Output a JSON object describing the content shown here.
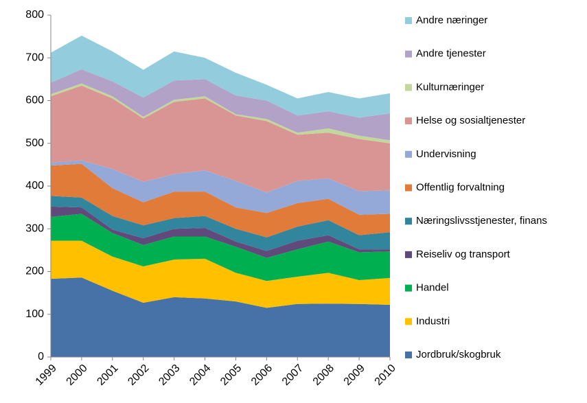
{
  "chart_data": {
    "type": "stacked_area",
    "categories": [
      "1999",
      "2000",
      "2001",
      "2002",
      "2003",
      "2004",
      "2005",
      "2006",
      "2007",
      "2008",
      "2009",
      "2010"
    ],
    "ylim": [
      0,
      800
    ],
    "yticks": [
      0,
      100,
      200,
      300,
      400,
      500,
      600,
      700,
      800
    ],
    "legend": "right",
    "series": [
      {
        "name": "Jordbruk/skogbruk",
        "color": "#4672a8",
        "values": [
          183,
          186,
          155,
          127,
          140,
          137,
          130,
          115,
          124,
          125,
          124,
          122
        ]
      },
      {
        "name": "Industri",
        "color": "#ffc000",
        "values": [
          89,
          86,
          80,
          85,
          88,
          93,
          67,
          63,
          64,
          72,
          56,
          63
        ]
      },
      {
        "name": "Handel",
        "color": "#00b050",
        "values": [
          56,
          63,
          55,
          50,
          54,
          52,
          61,
          54,
          64,
          73,
          65,
          62
        ]
      },
      {
        "name": "Reiseliv og transport",
        "color": "#604a7b",
        "values": [
          24,
          15,
          8,
          16,
          18,
          20,
          12,
          16,
          20,
          15,
          7,
          5
        ]
      },
      {
        "name": "Næringslivsstjenester, finans",
        "color": "#31859c",
        "values": [
          25,
          23,
          32,
          30,
          25,
          28,
          30,
          32,
          33,
          35,
          33,
          40
        ]
      },
      {
        "name": "Offentlig forvaltning",
        "color": "#e07b39",
        "values": [
          71,
          79,
          65,
          54,
          62,
          57,
          50,
          57,
          55,
          50,
          48,
          43
        ]
      },
      {
        "name": "Undervisning",
        "color": "#95a9d8",
        "values": [
          7,
          8,
          45,
          48,
          41,
          50,
          62,
          48,
          52,
          48,
          55,
          55
        ]
      },
      {
        "name": "Helse og sosialtjenester",
        "color": "#d99594",
        "values": [
          155,
          175,
          165,
          148,
          169,
          168,
          153,
          167,
          108,
          107,
          122,
          110
        ]
      },
      {
        "name": "Kulturnæringer",
        "color": "#c3d69b",
        "values": [
          5,
          5,
          5,
          4,
          5,
          5,
          3,
          5,
          5,
          10,
          8,
          7
        ]
      },
      {
        "name": "Andre tjenester",
        "color": "#b3a2c7",
        "values": [
          27,
          33,
          35,
          45,
          45,
          40,
          44,
          43,
          40,
          40,
          42,
          63
        ]
      },
      {
        "name": "Andre næringer",
        "color": "#93cddd",
        "values": [
          70,
          79,
          70,
          65,
          68,
          50,
          53,
          37,
          40,
          45,
          45,
          47
        ]
      }
    ]
  }
}
